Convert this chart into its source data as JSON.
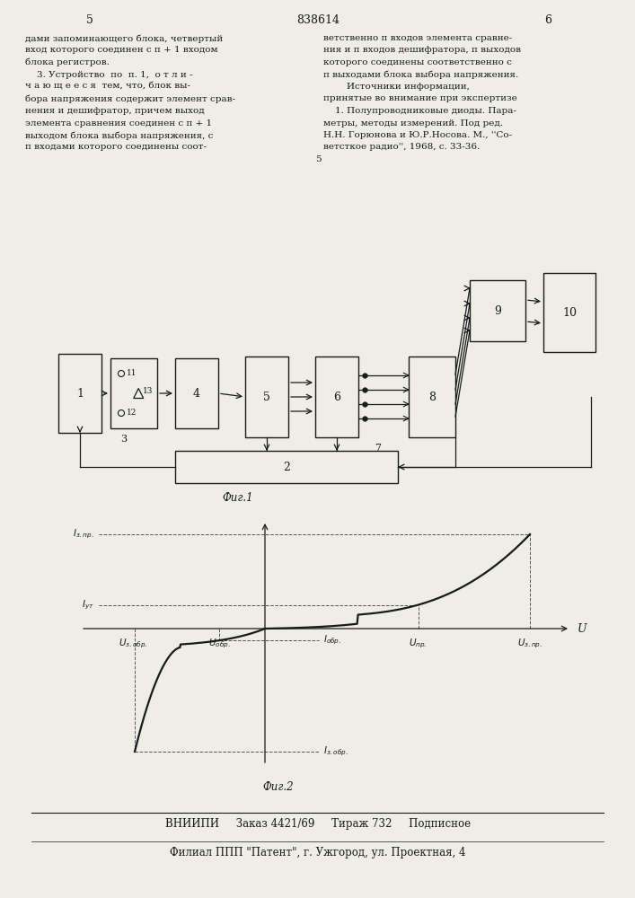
{
  "bg_color": "#eeede6",
  "tc": "#1a1a1a",
  "text_left": [
    "дами запоминающего блока, четвертый",
    "вход которого соединен с п + 1 входом",
    "блока регистров.",
    "    3. Устройство  по  п. 1,  о т л и -",
    "ч а ю щ е е с я  тем, что, блок вы-",
    "бора напряжения содержит элемент срав-",
    "нения и дешифратор, причем выход",
    "элемента сравнения соединен с п + 1",
    "выходом блока выбора напряжения, с",
    "п входами которого соединены соот-"
  ],
  "text_right": [
    "ветственно п входов элемента сравне-",
    "ния и п входов дешифратора, п выходов",
    "которого соединены соответственно с",
    "п выходами блока выбора напряжения.",
    "        Источники информации,",
    "принятые во внимание при экспертизе",
    "    1. Полупроводниковые диоды. Пара-",
    "метры, методы измерений. Под ред.",
    "Н.Н. Горюнова и Ю.Р.Носова. М., ''Со-",
    "ветсткое радио'', 1968, с. 33-36."
  ],
  "footer_line1": "ВНИИПИ     Заказ 4421/69     Тираж 732     Подписное",
  "footer_line2": "Филиал ППП \"Патент\", г. Ужгород, ул. Проектная, 4"
}
